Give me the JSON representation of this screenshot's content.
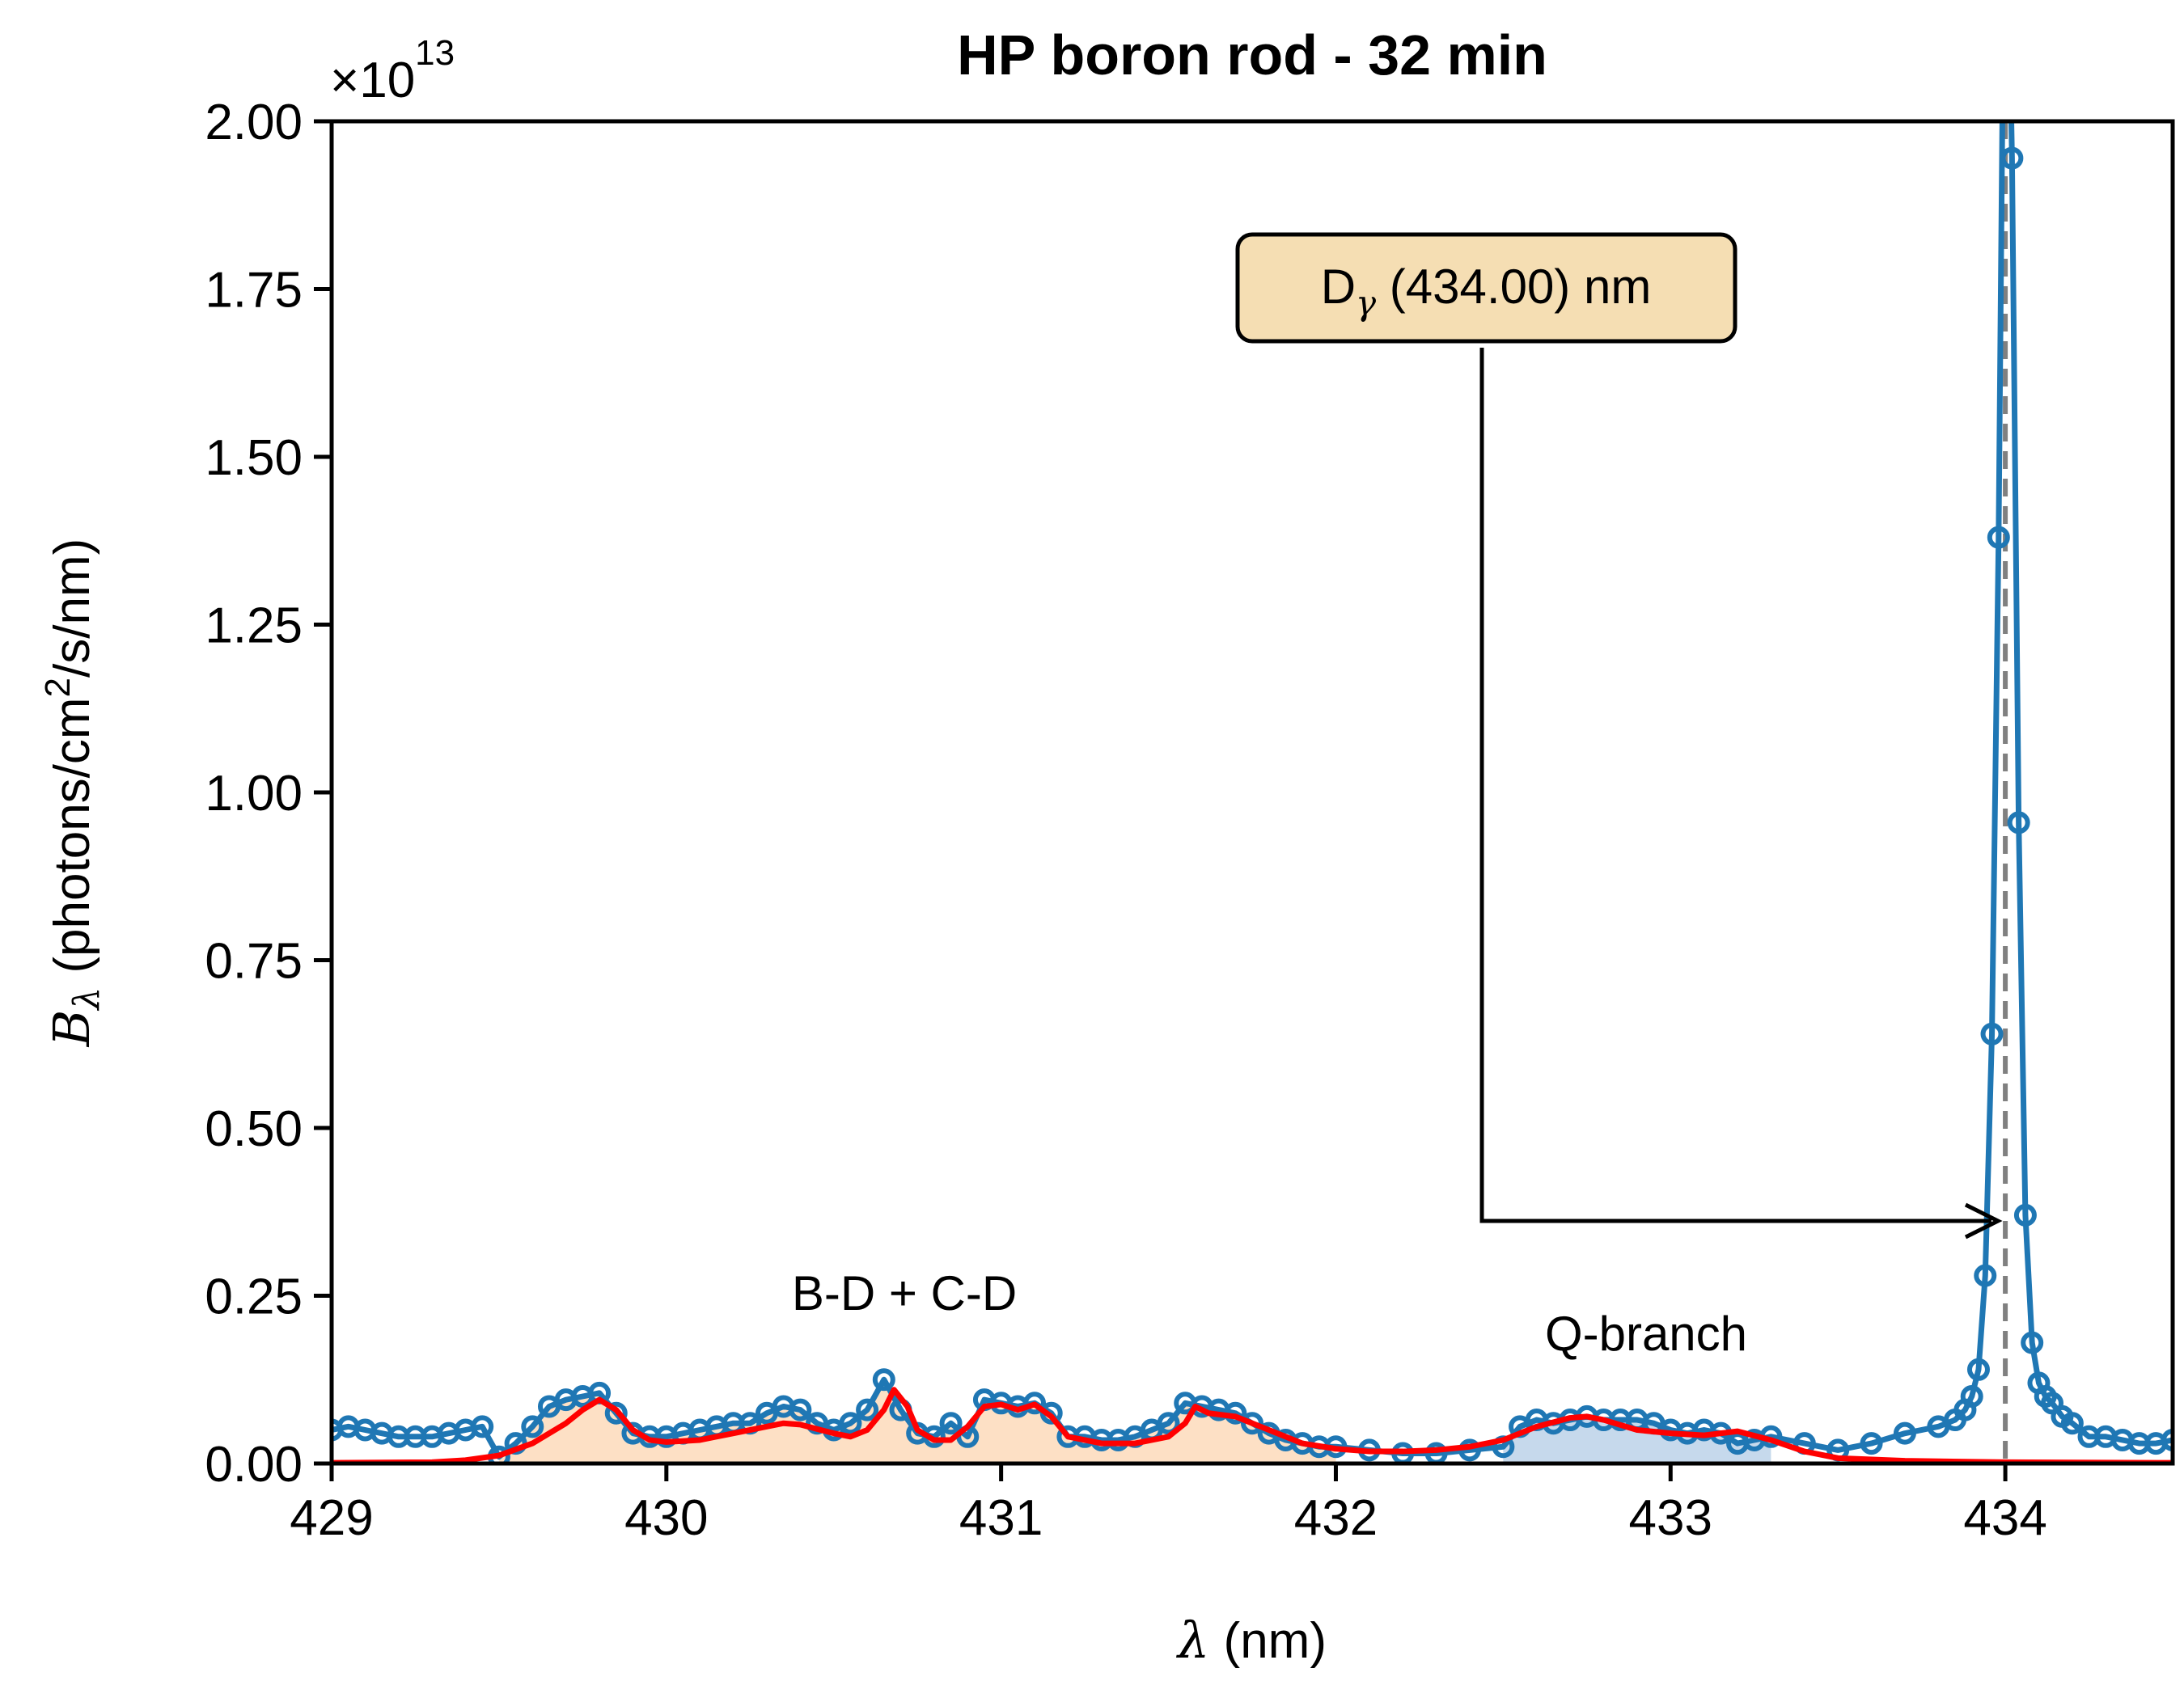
{
  "chart_data": {
    "type": "line",
    "title": "HP boron rod - 32 min",
    "xlabel": {
      "symbol": "λ",
      "unit": "(nm)"
    },
    "ylabel": {
      "symbol": "B",
      "subscript": "λ",
      "unit_pre": "(photons/cm",
      "unit_sup": "2",
      "unit_post": "/s/nm)"
    },
    "offset_text": {
      "base": "×10",
      "exponent": "13"
    },
    "xlim": [
      429,
      434.5
    ],
    "ylim": [
      0,
      2.0
    ],
    "y_scale_factor": 10000000000000.0,
    "xticks": [
      429,
      430,
      431,
      432,
      433,
      434
    ],
    "xtick_labels": [
      "429",
      "430",
      "431",
      "432",
      "433",
      "434"
    ],
    "yticks": [
      0,
      0.25,
      0.5,
      0.75,
      1.0,
      1.25,
      1.5,
      1.75,
      2.0
    ],
    "ytick_labels": [
      "0.00",
      "0.25",
      "0.50",
      "0.75",
      "1.00",
      "1.25",
      "1.50",
      "1.75",
      "2.00"
    ],
    "grid": false,
    "colors": {
      "measured": "#1f77b4",
      "fit": "#ff0000",
      "band_fill": "#fde0c5",
      "qbranch_fill": "#c6d9ec",
      "marker_line": "#808080",
      "annot_box": "#f5deb3"
    },
    "series": [
      {
        "style": "line-with-circle-markers",
        "x": [
          429.0,
          429.05,
          429.1,
          429.15,
          429.2,
          429.25,
          429.3,
          429.35,
          429.4,
          429.45,
          429.5,
          429.55,
          429.6,
          429.65,
          429.7,
          429.75,
          429.8,
          429.85,
          429.9,
          429.95,
          430.0,
          430.05,
          430.1,
          430.15,
          430.2,
          430.25,
          430.3,
          430.35,
          430.4,
          430.45,
          430.5,
          430.55,
          430.6,
          430.65,
          430.7,
          430.75,
          430.8,
          430.85,
          430.9,
          430.95,
          431.0,
          431.05,
          431.1,
          431.15,
          431.2,
          431.25,
          431.3,
          431.35,
          431.4,
          431.45,
          431.5,
          431.55,
          431.6,
          431.65,
          431.7,
          431.75,
          431.8,
          431.85,
          431.9,
          431.95,
          432.0,
          432.1,
          432.2,
          432.3,
          432.4,
          432.5,
          432.55,
          432.6,
          432.65,
          432.7,
          432.75,
          432.8,
          432.85,
          432.9,
          432.95,
          433.0,
          433.05,
          433.1,
          433.15,
          433.2,
          433.25,
          433.3,
          433.4,
          433.5,
          433.6,
          433.7,
          433.8,
          433.85,
          433.88,
          433.9,
          433.92,
          433.94,
          433.96,
          433.98,
          434.0,
          434.02,
          434.04,
          434.06,
          434.08,
          434.1,
          434.12,
          434.14,
          434.17,
          434.2,
          434.25,
          434.3,
          434.35,
          434.4,
          434.45,
          434.5
        ],
        "y": [
          0.05,
          0.055,
          0.05,
          0.045,
          0.04,
          0.04,
          0.04,
          0.045,
          0.05,
          0.055,
          0.01,
          0.03,
          0.055,
          0.085,
          0.095,
          0.1,
          0.105,
          0.075,
          0.045,
          0.04,
          0.04,
          0.045,
          0.05,
          0.055,
          0.06,
          0.06,
          0.075,
          0.085,
          0.08,
          0.06,
          0.05,
          0.06,
          0.08,
          0.125,
          0.08,
          0.045,
          0.04,
          0.06,
          0.04,
          0.095,
          0.09,
          0.085,
          0.09,
          0.075,
          0.04,
          0.04,
          0.035,
          0.035,
          0.04,
          0.05,
          0.06,
          0.09,
          0.085,
          0.08,
          0.075,
          0.06,
          0.045,
          0.035,
          0.03,
          0.025,
          0.025,
          0.02,
          0.015,
          0.015,
          0.02,
          0.025,
          0.055,
          0.065,
          0.06,
          0.065,
          0.07,
          0.065,
          0.065,
          0.065,
          0.06,
          0.05,
          0.045,
          0.05,
          0.045,
          0.03,
          0.035,
          0.04,
          0.03,
          0.02,
          0.03,
          0.045,
          0.055,
          0.065,
          0.08,
          0.1,
          0.14,
          0.28,
          0.64,
          1.38,
          2.5,
          1.945,
          0.955,
          0.37,
          0.18,
          0.12,
          0.1,
          0.09,
          0.07,
          0.06,
          0.04,
          0.04,
          0.035,
          0.03,
          0.03,
          0.035
        ]
      },
      {
        "style": "line",
        "x": [
          429.0,
          429.3,
          429.4,
          429.5,
          429.6,
          429.7,
          429.75,
          429.8,
          429.85,
          429.9,
          429.95,
          430.0,
          430.1,
          430.2,
          430.3,
          430.35,
          430.4,
          430.5,
          430.55,
          430.6,
          430.65,
          430.68,
          430.72,
          430.75,
          430.8,
          430.85,
          430.9,
          430.95,
          431.0,
          431.05,
          431.1,
          431.15,
          431.2,
          431.3,
          431.4,
          431.5,
          431.55,
          431.58,
          431.62,
          431.7,
          431.8,
          431.9,
          432.0,
          432.1,
          432.2,
          432.3,
          432.4,
          432.5,
          432.6,
          432.7,
          432.75,
          432.8,
          432.9,
          433.0,
          433.1,
          433.2,
          433.3,
          433.4,
          433.5,
          433.7,
          434.0,
          434.5
        ],
        "y": [
          0.001,
          0.002,
          0.005,
          0.012,
          0.03,
          0.06,
          0.08,
          0.095,
          0.08,
          0.05,
          0.035,
          0.032,
          0.035,
          0.045,
          0.055,
          0.06,
          0.058,
          0.045,
          0.04,
          0.05,
          0.08,
          0.11,
          0.085,
          0.05,
          0.035,
          0.035,
          0.055,
          0.085,
          0.088,
          0.08,
          0.088,
          0.07,
          0.04,
          0.03,
          0.03,
          0.04,
          0.06,
          0.085,
          0.075,
          0.07,
          0.05,
          0.03,
          0.022,
          0.018,
          0.018,
          0.02,
          0.025,
          0.035,
          0.055,
          0.068,
          0.07,
          0.065,
          0.05,
          0.045,
          0.042,
          0.048,
          0.035,
          0.018,
          0.008,
          0.004,
          0.002,
          0.001
        ]
      }
    ],
    "annotations": [
      {
        "text": "B-D + C-D",
        "x": 430.7,
        "y": 0.25
      },
      {
        "text": "Q-branch",
        "x": 432.95,
        "y": 0.19
      },
      {
        "text_main": "D",
        "text_sub": "γ",
        "text_rest": " (434.00) nm",
        "arrow_to_x": 434.0,
        "arrow_to_y": 0.36
      }
    ],
    "vline": {
      "x": 434.0,
      "style": "dashed"
    },
    "shaded_regions": [
      {
        "label": "B-D + C-D",
        "xlim": [
          429.5,
          432.0
        ]
      },
      {
        "label": "Q-branch",
        "xlim": [
          432.5,
          433.3
        ]
      }
    ]
  }
}
